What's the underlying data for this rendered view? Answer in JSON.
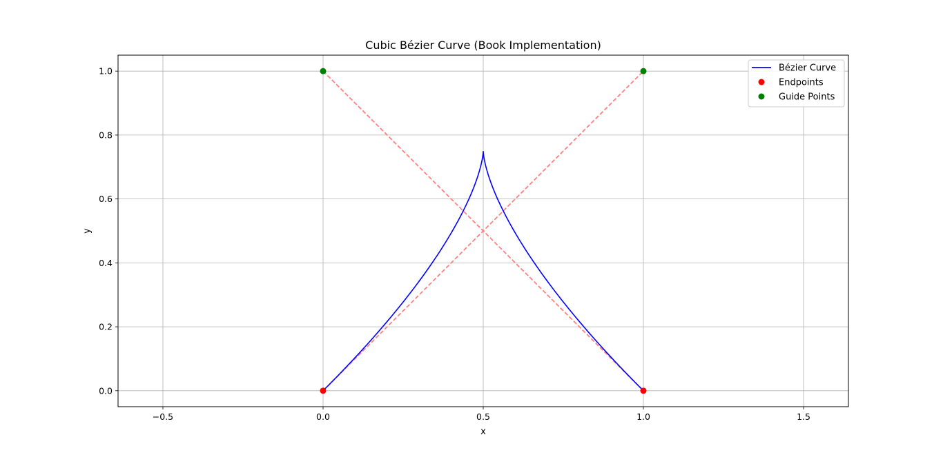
{
  "chart_data": {
    "type": "line",
    "title": "Cubic Bézier Curve (Book Implementation)",
    "xlabel": "x",
    "ylabel": "y",
    "xlim": [
      -0.64,
      1.64
    ],
    "ylim": [
      -0.05,
      1.05
    ],
    "xticks": [
      -0.5,
      0.0,
      0.5,
      1.0,
      1.5
    ],
    "xtick_labels": [
      "−0.5",
      "0.0",
      "0.5",
      "1.0",
      "1.5"
    ],
    "yticks": [
      0.0,
      0.2,
      0.4,
      0.6,
      0.8,
      1.0
    ],
    "ytick_labels": [
      "0.0",
      "0.2",
      "0.4",
      "0.6",
      "0.8",
      "1.0"
    ],
    "grid": true,
    "legend_position": "top-right",
    "control_points": [
      [
        0,
        0
      ],
      [
        1,
        1
      ],
      [
        0,
        1
      ],
      [
        1,
        0
      ]
    ],
    "series": [
      {
        "name": "Bézier Curve",
        "kind": "line",
        "color": "#0000ff",
        "x": [
          0,
          0.0725,
          0.14,
          0.2025,
          0.26,
          0.3125,
          0.36,
          0.4025,
          0.44,
          0.4725,
          0.5,
          0.5275,
          0.56,
          0.5975,
          0.64,
          0.6875,
          0.74,
          0.7975,
          0.86,
          0.9275,
          1.0
        ],
        "y": [
          0,
          0.1425,
          0.27,
          0.3825,
          0.48,
          0.5625,
          0.63,
          0.6825,
          0.72,
          0.7425,
          0.75,
          0.7425,
          0.72,
          0.6825,
          0.63,
          0.5625,
          0.48,
          0.3825,
          0.27,
          0.1425,
          0
        ]
      },
      {
        "name": "Endpoints",
        "kind": "points",
        "color": "#ff0000",
        "x": [
          0,
          1
        ],
        "y": [
          0,
          0
        ]
      },
      {
        "name": "Guide Points",
        "kind": "points",
        "color": "#008000",
        "x": [
          0,
          1
        ],
        "y": [
          1,
          1
        ]
      }
    ],
    "guide_lines": [
      {
        "x": [
          0,
          1
        ],
        "y": [
          0,
          1
        ],
        "color": "#ff8080",
        "style": "dashed"
      },
      {
        "x": [
          0,
          1
        ],
        "y": [
          1,
          0
        ],
        "color": "#ff8080",
        "style": "dashed"
      }
    ]
  }
}
